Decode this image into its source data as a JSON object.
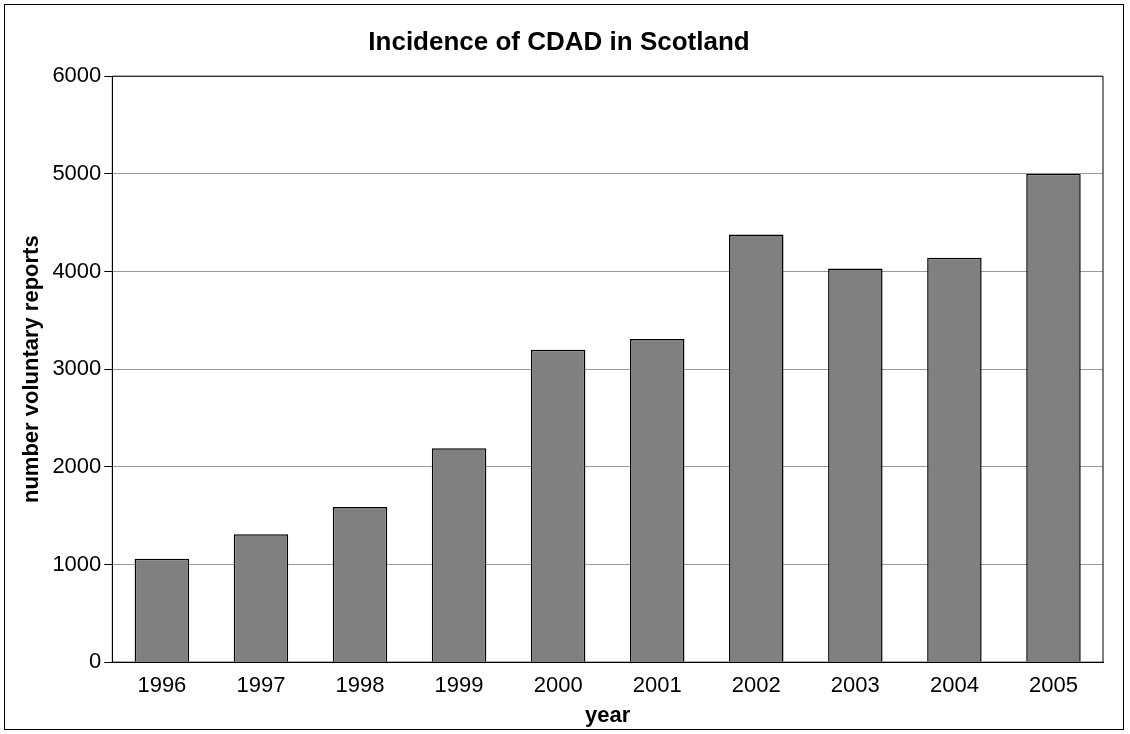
{
  "chart_data": {
    "type": "bar",
    "title": "Incidence of CDAD in Scotland",
    "xlabel": "year",
    "ylabel": "number voluntary reports",
    "categories": [
      "1996",
      "1997",
      "1998",
      "1999",
      "2000",
      "2001",
      "2002",
      "2003",
      "2004",
      "2005"
    ],
    "values": [
      1060,
      1310,
      1590,
      2190,
      3200,
      3310,
      4380,
      4030,
      4140,
      5000
    ],
    "color": "#808080",
    "ylim": [
      0,
      6000
    ],
    "yticks": [
      0,
      1000,
      2000,
      3000,
      4000,
      5000,
      6000
    ],
    "grid": "y",
    "legend": false
  }
}
